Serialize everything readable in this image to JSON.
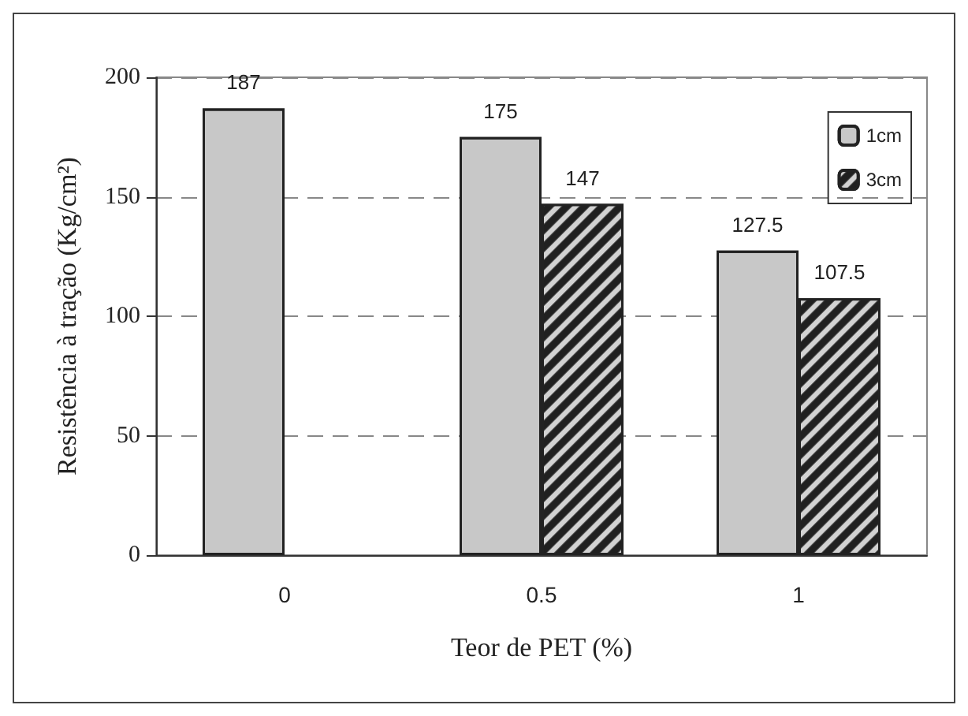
{
  "chart_data": {
    "type": "bar",
    "xlabel": "Teor de PET (%)",
    "ylabel": "Resistência à tração (Kg/cm²)",
    "categories": [
      "0",
      "0.5",
      "1"
    ],
    "series": [
      {
        "name": "1cm",
        "color": "#c8c8c8",
        "values": [
          187,
          175,
          127.5
        ]
      },
      {
        "name": "3cm",
        "color": "#202020",
        "values": [
          null,
          147,
          107.5
        ]
      }
    ],
    "ylim": [
      0,
      200
    ],
    "yticks": [
      0,
      50,
      100,
      150,
      200
    ],
    "grid": "y",
    "legend": "top right",
    "data_labels": true
  }
}
